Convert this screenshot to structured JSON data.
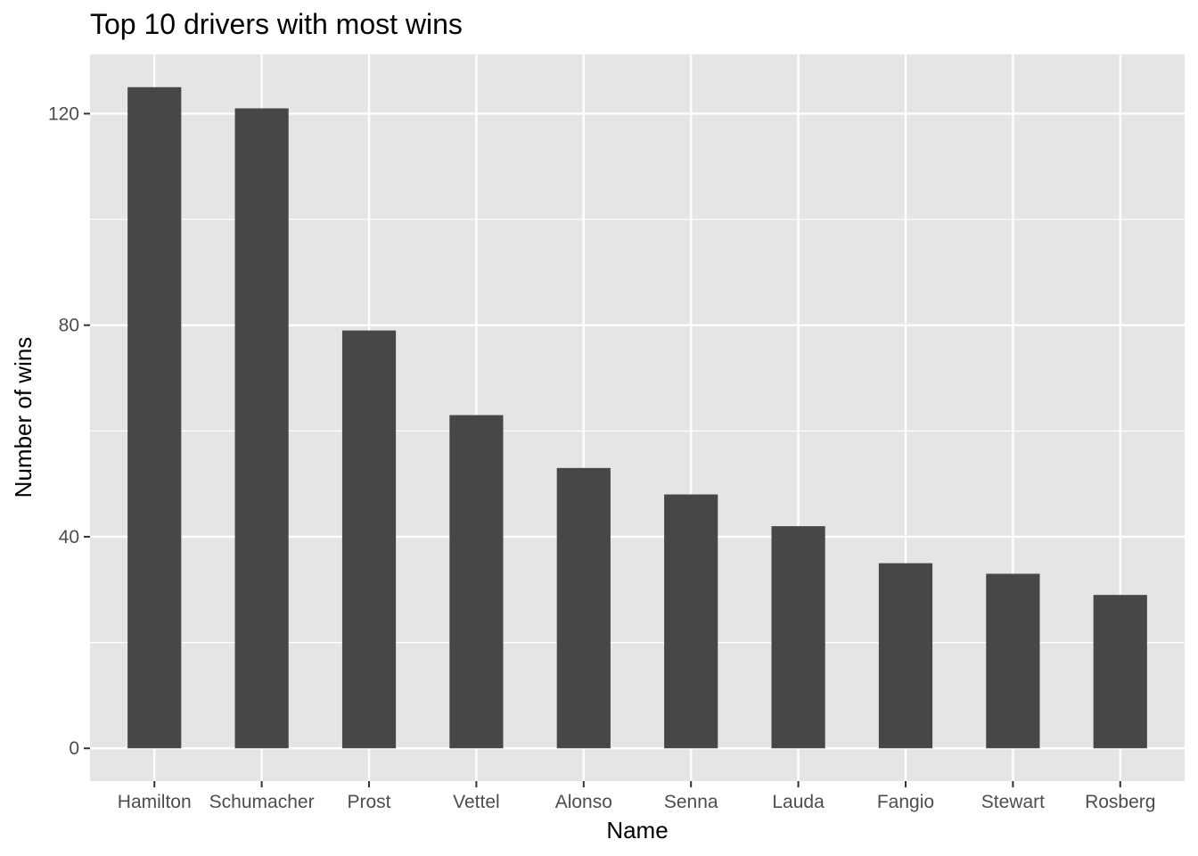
{
  "chart_data": {
    "type": "bar",
    "title": "Top 10 drivers with most wins",
    "xlabel": "Name",
    "ylabel": "Number of wins",
    "categories": [
      "Hamilton",
      "Schumacher",
      "Prost",
      "Vettel",
      "Alonso",
      "Senna",
      "Lauda",
      "Fangio",
      "Stewart",
      "Rosberg"
    ],
    "values": [
      125,
      121,
      79,
      63,
      53,
      48,
      42,
      35,
      33,
      29
    ],
    "ylim": [
      -6.2,
      131.2
    ],
    "yticks": [
      0,
      40,
      80,
      120
    ],
    "yticks_minor": [
      20,
      60,
      100
    ],
    "grid": true,
    "legend": "none",
    "colors": {
      "bar": "#474747",
      "panel": "#e5e5e5",
      "grid": "#ffffff",
      "tick": "#333333"
    }
  }
}
